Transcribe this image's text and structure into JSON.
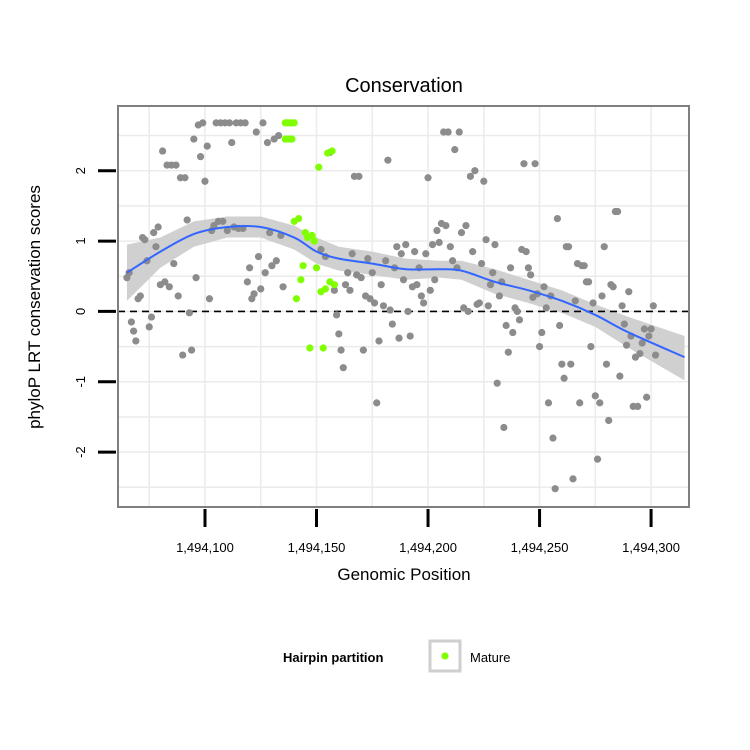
{
  "chart_data": {
    "type": "scatter",
    "title": "Conservation",
    "xlabel": "Genomic Position",
    "ylabel": "phyloP LRT conservation scores",
    "xlim": [
      1494061,
      1494317
    ],
    "ylim": [
      -2.78,
      2.92
    ],
    "x_ticks": [
      1494100,
      1494150,
      1494200,
      1494250,
      1494300
    ],
    "x_tick_labels": [
      "1,494,100",
      "1,494,150",
      "1,494,200",
      "1,494,250",
      "1,494,300"
    ],
    "y_ticks": [
      -2,
      -1,
      0,
      1,
      2
    ],
    "y_tick_labels": [
      "-2",
      "-1",
      "0",
      "1",
      "2"
    ],
    "reference_line": {
      "y": 0,
      "style": "dashed",
      "color": "#000000"
    },
    "grid": true,
    "legend": {
      "title": "Hairpin partition",
      "position": "bottom",
      "entries": [
        {
          "label": "Mature",
          "color": "#7fff00"
        }
      ]
    },
    "colors": {
      "background": "#ffffff",
      "grid": "#ebebeb",
      "other_points": "#8c8c8c",
      "mature_points": "#7fff00",
      "smooth_line": "#3366ff",
      "confidence_band": "#d0d0d0"
    },
    "series": [
      {
        "points": [
          [
            1494065,
            0.48
          ],
          [
            1494066,
            0.55
          ],
          [
            1494067,
            -0.15
          ],
          [
            1494068,
            -0.28
          ],
          [
            1494069,
            -0.42
          ],
          [
            1494070,
            0.18
          ],
          [
            1494071,
            0.22
          ],
          [
            1494072,
            1.05
          ],
          [
            1494073,
            1.02
          ],
          [
            1494074,
            0.72
          ],
          [
            1494075,
            -0.22
          ],
          [
            1494076,
            -0.08
          ],
          [
            1494077,
            1.12
          ],
          [
            1494078,
            0.92
          ],
          [
            1494079,
            1.2
          ],
          [
            1494080,
            0.38
          ],
          [
            1494081,
            2.28
          ],
          [
            1494082,
            0.42
          ],
          [
            1494083,
            2.08
          ],
          [
            1494084,
            0.35
          ],
          [
            1494085,
            2.08
          ],
          [
            1494086,
            0.68
          ],
          [
            1494087,
            2.08
          ],
          [
            1494088,
            0.22
          ],
          [
            1494089,
            1.9
          ],
          [
            1494090,
            -0.62
          ],
          [
            1494091,
            1.9
          ],
          [
            1494092,
            1.3
          ],
          [
            1494093,
            -0.02
          ],
          [
            1494094,
            -0.55
          ],
          [
            1494095,
            2.45
          ],
          [
            1494096,
            0.48
          ],
          [
            1494097,
            2.65
          ],
          [
            1494098,
            2.2
          ],
          [
            1494099,
            2.68
          ],
          [
            1494100,
            1.85
          ],
          [
            1494101,
            2.35
          ],
          [
            1494102,
            0.18
          ],
          [
            1494103,
            1.15
          ],
          [
            1494104,
            1.22
          ],
          [
            1494105,
            2.68
          ],
          [
            1494106,
            1.28
          ],
          [
            1494107,
            2.68
          ],
          [
            1494108,
            1.28
          ],
          [
            1494109,
            2.68
          ],
          [
            1494110,
            1.15
          ],
          [
            1494111,
            2.68
          ],
          [
            1494112,
            2.4
          ],
          [
            1494113,
            1.2
          ],
          [
            1494114,
            2.68
          ],
          [
            1494115,
            1.18
          ],
          [
            1494116,
            2.68
          ],
          [
            1494117,
            1.18
          ],
          [
            1494118,
            2.68
          ],
          [
            1494119,
            0.42
          ],
          [
            1494120,
            0.62
          ],
          [
            1494121,
            0.18
          ],
          [
            1494122,
            0.25
          ],
          [
            1494123,
            2.55
          ],
          [
            1494124,
            0.78
          ],
          [
            1494125,
            0.32
          ],
          [
            1494126,
            2.68
          ],
          [
            1494127,
            0.55
          ],
          [
            1494128,
            2.4
          ],
          [
            1494129,
            1.12
          ],
          [
            1494130,
            0.65
          ],
          [
            1494131,
            2.45
          ],
          [
            1494132,
            0.72
          ],
          [
            1494133,
            2.5
          ],
          [
            1494134,
            1.08
          ],
          [
            1494135,
            0.35
          ],
          [
            1494152,
            0.88
          ],
          [
            1494154,
            0.78
          ],
          [
            1494156,
            2.26
          ],
          [
            1494158,
            0.3
          ],
          [
            1494159,
            -0.05
          ],
          [
            1494160,
            -0.32
          ],
          [
            1494161,
            -0.55
          ],
          [
            1494162,
            -0.8
          ],
          [
            1494163,
            0.38
          ],
          [
            1494164,
            0.55
          ],
          [
            1494165,
            0.3
          ],
          [
            1494166,
            0.82
          ],
          [
            1494167,
            1.92
          ],
          [
            1494168,
            0.52
          ],
          [
            1494169,
            1.92
          ],
          [
            1494170,
            0.48
          ],
          [
            1494171,
            -0.55
          ],
          [
            1494172,
            0.22
          ],
          [
            1494173,
            0.75
          ],
          [
            1494174,
            0.18
          ],
          [
            1494175,
            0.55
          ],
          [
            1494176,
            0.12
          ],
          [
            1494177,
            -1.3
          ],
          [
            1494178,
            -0.42
          ],
          [
            1494179,
            0.38
          ],
          [
            1494180,
            0.08
          ],
          [
            1494181,
            0.72
          ],
          [
            1494182,
            2.15
          ],
          [
            1494183,
            0.02
          ],
          [
            1494184,
            -0.18
          ],
          [
            1494185,
            0.62
          ],
          [
            1494186,
            0.92
          ],
          [
            1494187,
            -0.38
          ],
          [
            1494188,
            0.82
          ],
          [
            1494189,
            0.45
          ],
          [
            1494190,
            0.95
          ],
          [
            1494191,
            0.0
          ],
          [
            1494192,
            -0.35
          ],
          [
            1494193,
            0.35
          ],
          [
            1494194,
            0.85
          ],
          [
            1494195,
            0.38
          ],
          [
            1494196,
            0.62
          ],
          [
            1494197,
            0.22
          ],
          [
            1494198,
            0.12
          ],
          [
            1494199,
            0.82
          ],
          [
            1494200,
            1.9
          ],
          [
            1494201,
            0.3
          ],
          [
            1494202,
            0.95
          ],
          [
            1494203,
            0.45
          ],
          [
            1494204,
            1.15
          ],
          [
            1494205,
            0.98
          ],
          [
            1494206,
            1.25
          ],
          [
            1494207,
            2.55
          ],
          [
            1494208,
            1.22
          ],
          [
            1494209,
            2.55
          ],
          [
            1494210,
            0.92
          ],
          [
            1494211,
            0.72
          ],
          [
            1494212,
            2.3
          ],
          [
            1494213,
            0.62
          ],
          [
            1494214,
            2.55
          ],
          [
            1494215,
            1.12
          ],
          [
            1494216,
            0.05
          ],
          [
            1494217,
            1.22
          ],
          [
            1494218,
            0.0
          ],
          [
            1494219,
            1.92
          ],
          [
            1494220,
            0.85
          ],
          [
            1494221,
            2.0
          ],
          [
            1494222,
            0.1
          ],
          [
            1494223,
            0.12
          ],
          [
            1494224,
            0.68
          ],
          [
            1494225,
            1.85
          ],
          [
            1494226,
            1.02
          ],
          [
            1494227,
            0.08
          ],
          [
            1494228,
            0.38
          ],
          [
            1494229,
            0.55
          ],
          [
            1494230,
            0.95
          ],
          [
            1494231,
            -1.02
          ],
          [
            1494232,
            0.22
          ],
          [
            1494233,
            0.42
          ],
          [
            1494234,
            -1.65
          ],
          [
            1494235,
            -0.2
          ],
          [
            1494236,
            -0.58
          ],
          [
            1494237,
            0.62
          ],
          [
            1494238,
            -0.3
          ],
          [
            1494239,
            0.05
          ],
          [
            1494240,
            0.0
          ],
          [
            1494241,
            -0.12
          ],
          [
            1494242,
            0.88
          ],
          [
            1494243,
            2.1
          ],
          [
            1494244,
            0.85
          ],
          [
            1494245,
            0.62
          ],
          [
            1494246,
            0.52
          ],
          [
            1494247,
            0.2
          ],
          [
            1494248,
            2.1
          ],
          [
            1494249,
            0.25
          ],
          [
            1494250,
            -0.5
          ],
          [
            1494251,
            -0.3
          ],
          [
            1494252,
            0.35
          ],
          [
            1494253,
            0.05
          ],
          [
            1494254,
            -1.3
          ],
          [
            1494255,
            0.22
          ],
          [
            1494256,
            -1.8
          ],
          [
            1494257,
            -2.52
          ],
          [
            1494258,
            1.32
          ],
          [
            1494259,
            -0.2
          ],
          [
            1494260,
            -0.75
          ],
          [
            1494261,
            -0.95
          ],
          [
            1494262,
            0.92
          ],
          [
            1494263,
            0.92
          ],
          [
            1494264,
            -0.75
          ],
          [
            1494265,
            -2.38
          ],
          [
            1494266,
            0.15
          ],
          [
            1494267,
            0.68
          ],
          [
            1494268,
            -1.3
          ],
          [
            1494269,
            0.65
          ],
          [
            1494270,
            0.65
          ],
          [
            1494271,
            0.42
          ],
          [
            1494272,
            0.42
          ],
          [
            1494273,
            -0.5
          ],
          [
            1494274,
            0.12
          ],
          [
            1494275,
            -1.2
          ],
          [
            1494276,
            -2.1
          ],
          [
            1494277,
            -1.3
          ],
          [
            1494278,
            0.22
          ],
          [
            1494279,
            0.92
          ],
          [
            1494280,
            -0.75
          ],
          [
            1494281,
            -1.55
          ],
          [
            1494282,
            0.38
          ],
          [
            1494283,
            0.35
          ],
          [
            1494284,
            1.42
          ],
          [
            1494285,
            1.42
          ],
          [
            1494286,
            -0.92
          ],
          [
            1494287,
            0.08
          ],
          [
            1494288,
            -0.18
          ],
          [
            1494289,
            -0.48
          ],
          [
            1494290,
            0.28
          ],
          [
            1494291,
            -0.35
          ],
          [
            1494292,
            -1.35
          ],
          [
            1494293,
            -0.65
          ],
          [
            1494294,
            -1.35
          ],
          [
            1494295,
            -0.6
          ],
          [
            1494296,
            -0.45
          ],
          [
            1494297,
            -0.25
          ],
          [
            1494298,
            -1.22
          ],
          [
            1494299,
            -0.35
          ],
          [
            1494300,
            -0.25
          ],
          [
            1494301,
            0.08
          ],
          [
            1494302,
            -0.62
          ]
        ]
      },
      {
        "name": "Mature",
        "points": [
          [
            1494136,
            2.68
          ],
          [
            1494137,
            2.68
          ],
          [
            1494138,
            2.68
          ],
          [
            1494139,
            2.68
          ],
          [
            1494140,
            2.68
          ],
          [
            1494136,
            2.45
          ],
          [
            1494137,
            2.45
          ],
          [
            1494138,
            2.45
          ],
          [
            1494139,
            2.45
          ],
          [
            1494140,
            1.28
          ],
          [
            1494141,
            0.18
          ],
          [
            1494142,
            1.32
          ],
          [
            1494143,
            0.45
          ],
          [
            1494144,
            0.65
          ],
          [
            1494145,
            1.12
          ],
          [
            1494146,
            1.05
          ],
          [
            1494147,
            -0.52
          ],
          [
            1494148,
            1.08
          ],
          [
            1494149,
            1.0
          ],
          [
            1494150,
            0.62
          ],
          [
            1494151,
            2.05
          ],
          [
            1494152,
            0.28
          ],
          [
            1494153,
            -0.52
          ],
          [
            1494154,
            0.32
          ],
          [
            1494155,
            2.25
          ],
          [
            1494156,
            0.42
          ],
          [
            1494157,
            2.28
          ],
          [
            1494158,
            0.38
          ]
        ]
      }
    ],
    "smooth_line": [
      [
        1494065,
        0.55
      ],
      [
        1494080,
        0.85
      ],
      [
        1494095,
        1.1
      ],
      [
        1494110,
        1.2
      ],
      [
        1494125,
        1.2
      ],
      [
        1494140,
        1.05
      ],
      [
        1494150,
        0.85
      ],
      [
        1494160,
        0.75
      ],
      [
        1494175,
        0.68
      ],
      [
        1494190,
        0.6
      ],
      [
        1494205,
        0.6
      ],
      [
        1494215,
        0.58
      ],
      [
        1494230,
        0.42
      ],
      [
        1494245,
        0.3
      ],
      [
        1494260,
        0.15
      ],
      [
        1494275,
        -0.05
      ],
      [
        1494290,
        -0.3
      ],
      [
        1494315,
        -0.65
      ]
    ],
    "confidence_band": {
      "upper": [
        [
          1494065,
          0.95
        ],
        [
          1494080,
          1.05
        ],
        [
          1494095,
          1.28
        ],
        [
          1494110,
          1.35
        ],
        [
          1494125,
          1.35
        ],
        [
          1494140,
          1.22
        ],
        [
          1494150,
          1.05
        ],
        [
          1494160,
          0.92
        ],
        [
          1494175,
          0.85
        ],
        [
          1494190,
          0.75
        ],
        [
          1494205,
          0.72
        ],
        [
          1494215,
          0.72
        ],
        [
          1494230,
          0.6
        ],
        [
          1494245,
          0.45
        ],
        [
          1494260,
          0.3
        ],
        [
          1494275,
          0.1
        ],
        [
          1494290,
          -0.08
        ],
        [
          1494315,
          -0.35
        ]
      ],
      "lower": [
        [
          1494065,
          0.15
        ],
        [
          1494080,
          0.62
        ],
        [
          1494095,
          0.92
        ],
        [
          1494110,
          1.05
        ],
        [
          1494125,
          1.05
        ],
        [
          1494140,
          0.88
        ],
        [
          1494150,
          0.68
        ],
        [
          1494160,
          0.58
        ],
        [
          1494175,
          0.52
        ],
        [
          1494190,
          0.45
        ],
        [
          1494205,
          0.48
        ],
        [
          1494215,
          0.45
        ],
        [
          1494230,
          0.25
        ],
        [
          1494245,
          0.12
        ],
        [
          1494260,
          -0.02
        ],
        [
          1494275,
          -0.22
        ],
        [
          1494290,
          -0.52
        ],
        [
          1494315,
          -0.98
        ]
      ]
    }
  }
}
